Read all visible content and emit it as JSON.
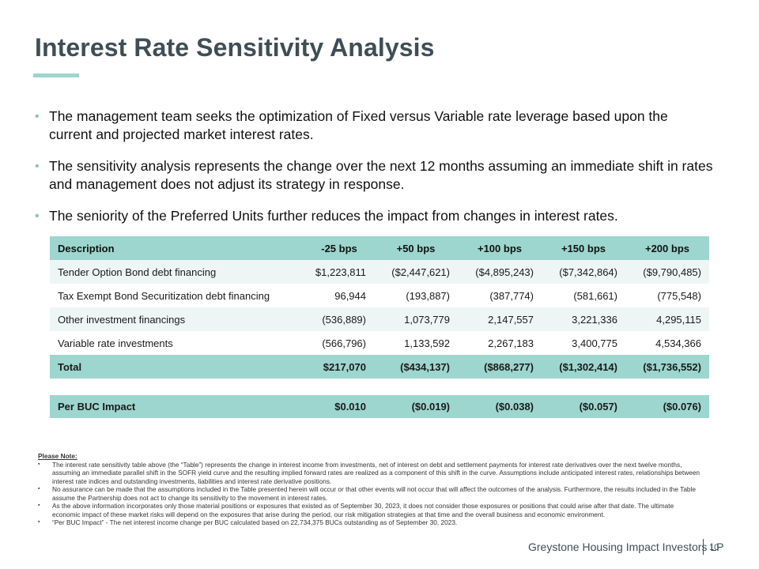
{
  "title": "Interest Rate Sensitivity Analysis",
  "bullets": [
    "The management team seeks the optimization of Fixed versus Variable rate leverage based upon the current and projected market interest rates.",
    "The sensitivity analysis represents the change over the next 12 months assuming an immediate shift in rates and management does not adjust its strategy in response.",
    "The seniority of the Preferred Units further reduces the impact from changes in interest rates."
  ],
  "bullet_glyph": "•",
  "table": {
    "headers": [
      "Description",
      "-25 bps",
      "+50 bps",
      "+100 bps",
      "+150 bps",
      "+200 bps"
    ],
    "rows": [
      [
        "Tender Option Bond debt financing",
        "$1,223,811",
        "($2,447,621)",
        "($4,895,243)",
        "($7,342,864)",
        "($9,790,485)"
      ],
      [
        "Tax Exempt Bond Securitization debt financing",
        "96,944",
        "(193,887)",
        "(387,774)",
        "(581,661)",
        "(775,548)"
      ],
      [
        "Other investment financings",
        "(536,889)",
        "1,073,779",
        "2,147,557",
        "3,221,336",
        "4,295,115"
      ],
      [
        "Variable rate investments",
        "(566,796)",
        "1,133,592",
        "2,267,183",
        "3,400,775",
        "4,534,366"
      ]
    ],
    "total": [
      "Total",
      "$217,070",
      "($434,137)",
      "($868,277)",
      "($1,302,414)",
      "($1,736,552)"
    ]
  },
  "buc_row": [
    "Per BUC Impact",
    "$0.010",
    "($0.019)",
    "($0.038)",
    "($0.057)",
    "($0.076)"
  ],
  "notes": {
    "heading": "Please Note:",
    "items": [
      "The interest rate sensitivity table above (the “Table”) represents the change in interest income from investments, net of interest on debt and settlement payments for interest rate derivatives over the next twelve months, assuming an immediate parallel shift in the SOFR yield curve and the resulting implied forward rates are realized as a component of this shift in the curve. Assumptions include anticipated interest rates, relationships between interest rate indices and outstanding investments, liabilities and interest rate derivative positions.",
      "No assurance can be made that the assumptions included in the Table presented herein will occur or that other events will not occur that will affect the outcomes of the analysis. Furthermore, the results included in the Table assume the Partnership does not act to change its sensitivity to the movement in interest rates.",
      "As the above information incorporates only those material positions or exposures that existed as of September 30, 2023, it does not consider those exposures or positions that could arise after that date. The ultimate economic impact of these market risks will depend on the exposures that arise during the period, our risk mitigation strategies at that time and the overall business and economic environment.",
      "“Per BUC Impact” - The net interest income change per BUC calculated based on 22,734,375 BUCs outstanding as of September 30, 2023."
    ],
    "item_glyph": "▪"
  },
  "footer": {
    "company": "Greystone Housing Impact Investors LP",
    "page": "10"
  },
  "colors": {
    "title": "#3f4e55",
    "accent": "#9dd6cf",
    "row_alt": "#eef6f5"
  }
}
